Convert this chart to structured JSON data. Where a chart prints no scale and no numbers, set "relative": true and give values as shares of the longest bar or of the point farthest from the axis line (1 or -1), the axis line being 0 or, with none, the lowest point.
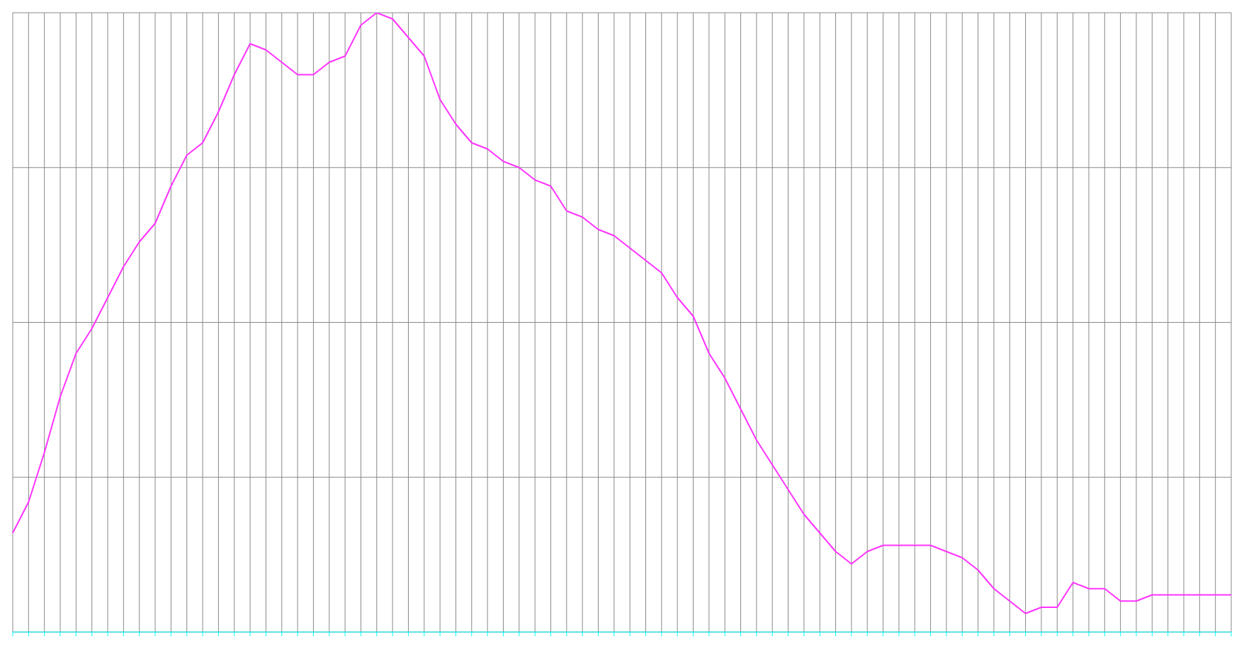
{
  "chart_data": {
    "type": "line",
    "relative": true,
    "grid": true,
    "marker": "none",
    "line_style": "solid",
    "categories": [
      null,
      null,
      null,
      null,
      null,
      null,
      null,
      null,
      null,
      null,
      null,
      null,
      null,
      null,
      null,
      null,
      null,
      null,
      null,
      null,
      null,
      null,
      null,
      null,
      null,
      null,
      null,
      null,
      null,
      null,
      null,
      null,
      null,
      null,
      null,
      null,
      null,
      null,
      null,
      null,
      null,
      null,
      null,
      null,
      null,
      null,
      null,
      null,
      null,
      null,
      null,
      null,
      null,
      null,
      null,
      null,
      null,
      null,
      null,
      null,
      null,
      null,
      null,
      null,
      null,
      null,
      null,
      null,
      null,
      null,
      null,
      null,
      null,
      null,
      null,
      null,
      null,
      null
    ],
    "series": [
      {
        "color": "#ff33ff",
        "values": [
          0.16,
          0.21,
          0.29,
          0.38,
          0.45,
          0.49,
          0.54,
          0.59,
          0.63,
          0.66,
          0.72,
          0.77,
          0.79,
          0.84,
          0.9,
          0.95,
          0.94,
          0.92,
          0.9,
          0.9,
          0.92,
          0.93,
          0.98,
          1.0,
          0.99,
          0.96,
          0.93,
          0.86,
          0.82,
          0.79,
          0.78,
          0.76,
          0.75,
          0.73,
          0.72,
          0.68,
          0.67,
          0.65,
          0.64,
          0.62,
          0.6,
          0.58,
          0.54,
          0.51,
          0.45,
          0.41,
          0.36,
          0.31,
          0.27,
          0.23,
          0.19,
          0.16,
          0.13,
          0.11,
          0.13,
          0.14,
          0.14,
          0.14,
          0.14,
          0.13,
          0.12,
          0.1,
          0.07,
          0.05,
          0.03,
          0.04,
          0.04,
          0.08,
          0.07,
          0.07,
          0.05,
          0.05,
          0.06,
          0.06,
          0.06,
          0.06,
          0.06,
          0.06
        ]
      }
    ]
  }
}
